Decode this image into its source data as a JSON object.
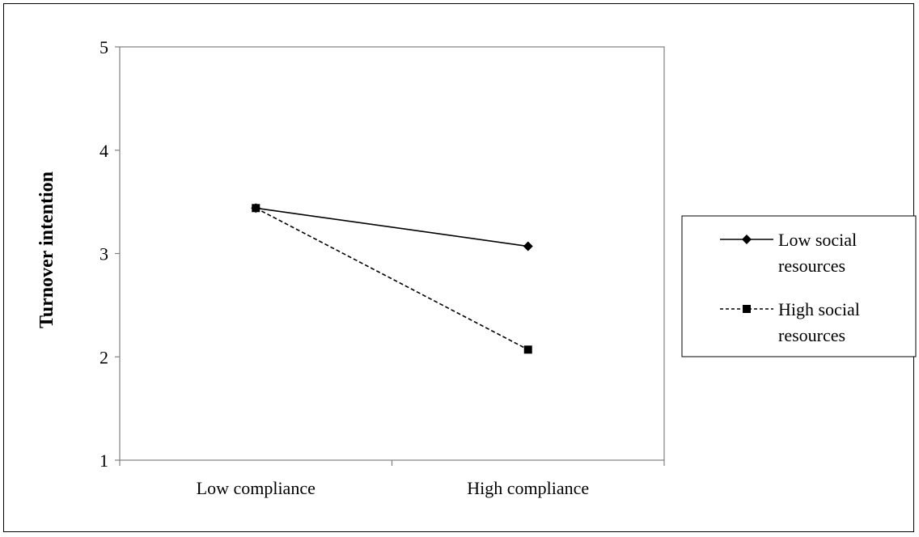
{
  "chart_data": {
    "type": "line",
    "categories": [
      "Low compliance",
      "High compliance"
    ],
    "series": [
      {
        "name": "Low social resources",
        "name_lines": [
          "Low social",
          "resources"
        ],
        "values": [
          3.44,
          3.07
        ],
        "line_style": "solid",
        "marker": "diamond",
        "color": "#000000"
      },
      {
        "name": "High social resources",
        "name_lines": [
          "High social",
          "resources"
        ],
        "values": [
          3.44,
          2.07
        ],
        "line_style": "dashed",
        "marker": "square",
        "color": "#000000"
      }
    ],
    "title": "",
    "xlabel": "",
    "ylabel": "Turnover intention",
    "ylim": [
      1,
      5
    ],
    "yticks": [
      "1",
      "2",
      "3",
      "4",
      "5"
    ],
    "grid": false,
    "legend_position": "right",
    "colors": {
      "axis": "#808080",
      "plot_border": "#808080",
      "text": "#000000"
    }
  }
}
